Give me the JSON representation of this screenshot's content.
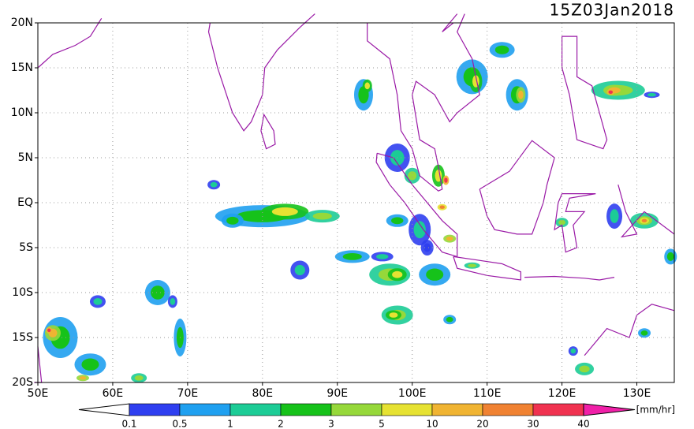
{
  "title": "15Z03Jan2018",
  "map": {
    "lat_labels": [
      "20N",
      "15N",
      "10N",
      "5N",
      "EQ",
      "5S",
      "10S",
      "15S",
      "20S"
    ],
    "lon_labels": [
      "50E",
      "60E",
      "70E",
      "80E",
      "90E",
      "100E",
      "110E",
      "120E",
      "130E"
    ]
  },
  "colorbar": {
    "levels": [
      "0.1",
      "0.5",
      "1",
      "2",
      "3",
      "5",
      "10",
      "20",
      "30",
      "40"
    ],
    "colors": [
      "#2f3ff0",
      "#1fa0f0",
      "#1ccc96",
      "#16c21a",
      "#96d83a",
      "#e6e232",
      "#f0b432",
      "#f08232",
      "#f03250",
      "#f020a8"
    ],
    "unit": "[mm/hr]"
  }
}
